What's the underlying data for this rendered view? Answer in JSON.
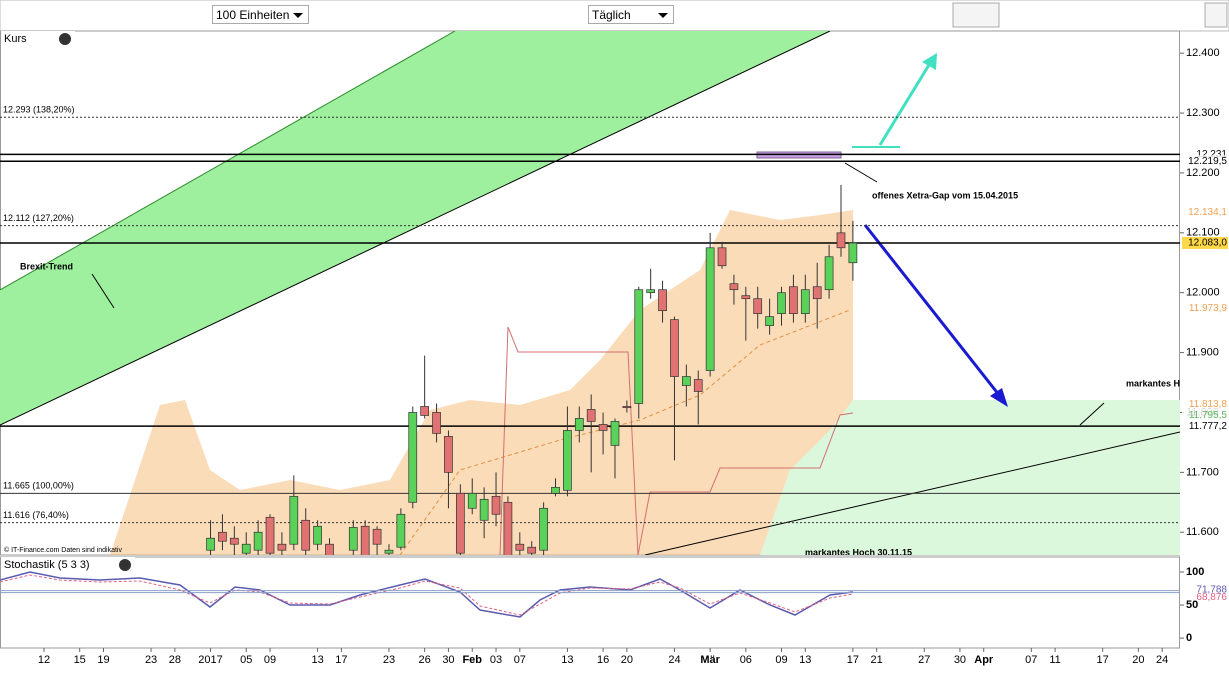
{
  "header": {
    "units": "100 Einheiten",
    "interval": "Täglich"
  },
  "chart_data": [
    {
      "type": "candlestick",
      "title": "Kurs",
      "x": [
        14,
        15,
        16,
        17,
        18,
        19,
        20,
        21,
        22,
        23,
        24,
        26,
        27,
        28,
        29,
        30,
        31,
        32,
        33,
        34,
        35,
        36,
        37,
        38,
        39,
        40,
        41,
        42,
        43,
        44,
        45,
        46,
        47,
        48,
        49,
        50,
        51,
        52,
        53,
        54,
        55,
        56,
        57,
        58,
        59,
        60,
        61,
        62,
        63,
        64,
        65,
        66,
        67,
        68
      ],
      "open": [
        11570,
        11600,
        11590,
        11565,
        11570,
        11625,
        11580,
        11580,
        11620,
        11580,
        11580,
        11570,
        11610,
        11605,
        11565,
        11575,
        11650,
        11810,
        11800,
        11760,
        11665,
        11640,
        11620,
        11660,
        11650,
        11580,
        11575,
        11570,
        11665,
        11670,
        11770,
        11805,
        11780,
        11745,
        11810,
        11815,
        12000,
        12005,
        11955,
        11845,
        11855,
        11870,
        12075,
        12015,
        11995,
        11990,
        11945,
        11965,
        12010,
        11965,
        12010,
        12005,
        12100,
        12050
      ],
      "high": [
        11620,
        11630,
        11610,
        11600,
        11620,
        11630,
        11600,
        11695,
        11640,
        11620,
        11590,
        11620,
        11620,
        11610,
        11580,
        11640,
        11810,
        11895,
        11815,
        11770,
        11680,
        11690,
        11675,
        11700,
        11660,
        11600,
        11585,
        11650,
        11690,
        11810,
        11810,
        11830,
        11800,
        11790,
        11820,
        12010,
        12040,
        12020,
        11960,
        11880,
        11870,
        12100,
        12085,
        12030,
        12010,
        12010,
        11990,
        12010,
        12030,
        12030,
        12050,
        12080,
        12180,
        12120
      ],
      "low": [
        11540,
        11570,
        11560,
        11540,
        11560,
        11540,
        11550,
        11570,
        11550,
        11570,
        11540,
        11550,
        11550,
        11560,
        11550,
        11570,
        11640,
        11790,
        11750,
        11640,
        11550,
        11630,
        11590,
        11610,
        11540,
        11560,
        11550,
        11560,
        11660,
        11660,
        11750,
        11700,
        11730,
        11690,
        11800,
        11790,
        11990,
        11950,
        11720,
        11810,
        11780,
        11860,
        12040,
        11980,
        11920,
        11940,
        11930,
        11945,
        11950,
        11950,
        11940,
        11990,
        12060,
        12020
      ],
      "close": [
        11590,
        11585,
        11580,
        11580,
        11600,
        11565,
        11570,
        11660,
        11570,
        11610,
        11560,
        11608,
        11560,
        11580,
        11570,
        11630,
        11800,
        11795,
        11765,
        11700,
        11565,
        11665,
        11655,
        11630,
        11560,
        11570,
        11565,
        11640,
        11675,
        11770,
        11790,
        11785,
        11770,
        11785,
        11808,
        12005,
        12005,
        11970,
        11860,
        11860,
        11835,
        12075,
        12045,
        12005,
        11990,
        11965,
        11960,
        12000,
        11965,
        12005,
        11990,
        12060,
        12075,
        12083
      ],
      "up_color": "#5ad25a",
      "down_color": "#e07272",
      "xlim": [
        -3.7,
        95.5
      ],
      "xticks": [
        {
          "value": 0,
          "label": "12"
        },
        {
          "value": 3,
          "label": "15"
        },
        {
          "value": 5,
          "label": "19"
        },
        {
          "value": 9,
          "label": "23"
        },
        {
          "value": 11,
          "label": "28"
        },
        {
          "value": 14,
          "label": "2017"
        },
        {
          "value": 17,
          "label": "05"
        },
        {
          "value": 19,
          "label": "09"
        },
        {
          "value": 23,
          "label": "13"
        },
        {
          "value": 25,
          "label": "17"
        },
        {
          "value": 29,
          "label": "23"
        },
        {
          "value": 32,
          "label": "26"
        },
        {
          "value": 34,
          "label": "30"
        },
        {
          "value": 36,
          "label": "Feb"
        },
        {
          "value": 38,
          "label": "03"
        },
        {
          "value": 40,
          "label": "07"
        },
        {
          "value": 44,
          "label": "13"
        },
        {
          "value": 47,
          "label": "16"
        },
        {
          "value": 49,
          "label": "20"
        },
        {
          "value": 53,
          "label": "24"
        },
        {
          "value": 56,
          "label": "Mär"
        },
        {
          "value": 59,
          "label": "06"
        },
        {
          "value": 62,
          "label": "09"
        },
        {
          "value": 64,
          "label": "13"
        },
        {
          "value": 68,
          "label": "17"
        },
        {
          "value": 70,
          "label": "21"
        },
        {
          "value": 74,
          "label": "27"
        },
        {
          "value": 77,
          "label": "30"
        },
        {
          "value": 79,
          "label": "Apr"
        },
        {
          "value": 83,
          "label": "07"
        },
        {
          "value": 85,
          "label": "11"
        },
        {
          "value": 89,
          "label": "17"
        },
        {
          "value": 92,
          "label": "20"
        },
        {
          "value": 94,
          "label": "24"
        }
      ],
      "ylim": [
        11562,
        12437
      ],
      "yticks": [
        {
          "value": 11600,
          "label": "11.600"
        },
        {
          "value": 11700,
          "label": "11.700"
        },
        {
          "value": 11800,
          "label": "11.800"
        },
        {
          "value": 11900,
          "label": "11.900"
        },
        {
          "value": 12000,
          "label": "12.000"
        },
        {
          "value": 12100,
          "label": "12.100"
        },
        {
          "value": 12200,
          "label": "12.200"
        },
        {
          "value": 12300,
          "label": "12.300"
        },
        {
          "value": 12400,
          "label": "12.400"
        }
      ],
      "levels": [
        {
          "value": 12293,
          "label": "12.293 (138,20%)"
        },
        {
          "value": 12112,
          "label": "12.112 (127,20%)"
        },
        {
          "value": 11665,
          "label": "11.665 (100,00%)"
        },
        {
          "value": 11616,
          "label": "11.616 (76,40%)"
        }
      ],
      "price_tags": [
        {
          "value": 12231,
          "label": "12.231",
          "color": "#000000"
        },
        {
          "value": 12219.5,
          "label": "12.219,5",
          "color": "#000000"
        },
        {
          "value": 12134.1,
          "label": "12.134,1",
          "color": "#f0a050"
        },
        {
          "value": 12083.0,
          "label": "12.083,0",
          "color": "#000000"
        },
        {
          "value": 11973.9,
          "label": "11.973,9",
          "color": "#f0a050"
        },
        {
          "value": 11813.8,
          "label": "11.813,8",
          "color": "#f0a050"
        },
        {
          "value": 11795.5,
          "label": "11.795,5",
          "color": "#5ab85a"
        },
        {
          "value": 11777.2,
          "label": "11.777,2",
          "color": "#000000"
        }
      ],
      "annotations": [
        "Brexit-Trend",
        "offenes Xetra-Gap vom 15.04.2015",
        "markantes Hoch",
        "markantes Hoch 30.11.15"
      ],
      "source": "© IT-Finance.com  Daten sind indikativ"
    },
    {
      "type": "oscillator",
      "title": "Stochastik (5 3 3)",
      "ylim": [
        -15,
        122.7
      ],
      "yticks": [
        0,
        50,
        100
      ],
      "price_tags": [
        {
          "value": 71.788,
          "label": "71,788",
          "color": "#5a5ab0"
        },
        {
          "value": 68.876,
          "label": "68,876",
          "color": "#e06080"
        }
      ]
    }
  ]
}
